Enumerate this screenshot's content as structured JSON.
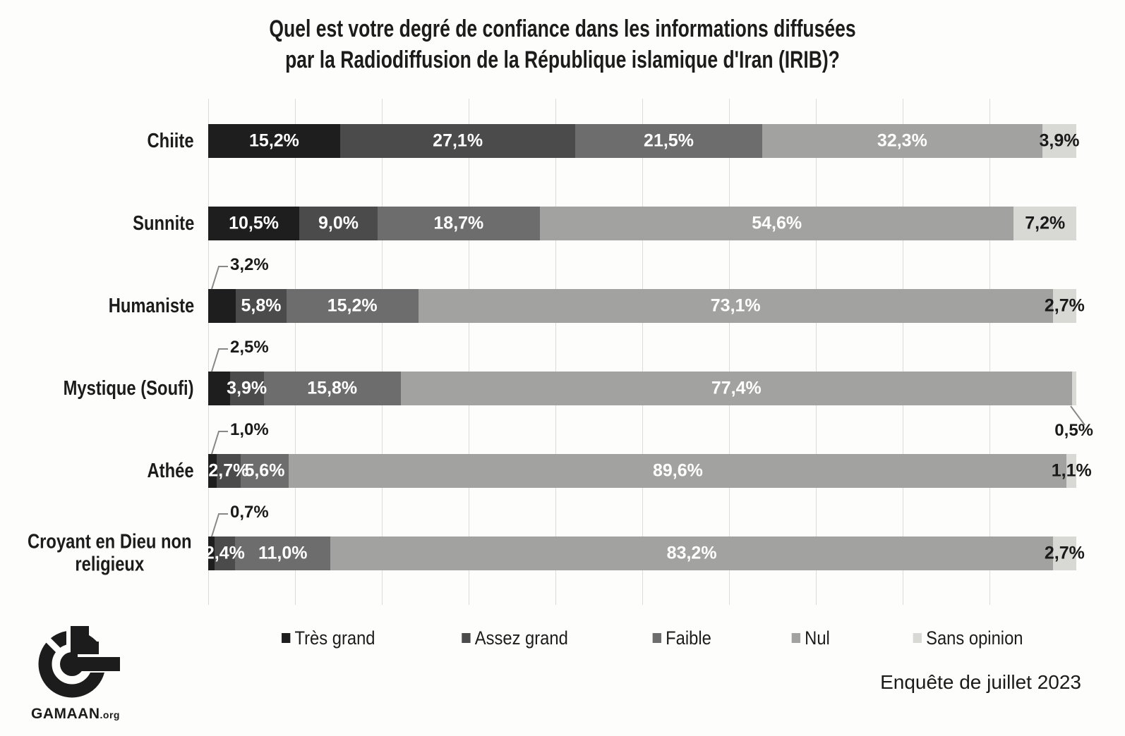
{
  "title": {
    "line1": "Quel est votre degré de confiance dans les informations diffusées",
    "line2": "par la Radiodiffusion de la République islamique d'Iran (IRIB)?"
  },
  "chart_data": {
    "type": "bar",
    "variant": "horizontal-stacked",
    "unit": "%",
    "xlim": [
      0,
      100
    ],
    "gridline_step_percent": 10,
    "grid": true,
    "legend_position": "bottom",
    "categories": [
      "Chiite",
      "Sunnite",
      "Humaniste",
      "Mystique (Soufi)",
      "Athée",
      "Croyant en Dieu non religieux"
    ],
    "series": [
      {
        "name": "Très grand",
        "color": "#1e1e1e",
        "values": [
          15.2,
          10.5,
          3.2,
          2.5,
          1.0,
          0.7
        ]
      },
      {
        "name": "Assez grand",
        "color": "#4b4b4b",
        "values": [
          27.1,
          9.0,
          5.8,
          3.9,
          2.7,
          2.4
        ]
      },
      {
        "name": "Faible",
        "color": "#6d6d6d",
        "values": [
          21.5,
          18.7,
          15.2,
          15.8,
          5.6,
          11.0
        ]
      },
      {
        "name": "Nul",
        "color": "#a2a2a0",
        "values": [
          32.3,
          54.6,
          73.1,
          77.4,
          89.6,
          83.2
        ]
      },
      {
        "name": "Sans opinion",
        "color": "#d8d8d4",
        "values": [
          3.9,
          7.2,
          2.7,
          0.5,
          1.1,
          2.7
        ]
      }
    ],
    "value_label_decimal_separator": ","
  },
  "footer": {
    "survey_note": "Enquête de juillet 2023",
    "logo_text": "GAMAAN",
    "logo_suffix": ".org"
  },
  "colors": {
    "background": "#fdfdfc",
    "gridline": "#dbdbdb",
    "label_on_dark": "#ffffff",
    "label_on_light": "#1a1a1a",
    "leader_line": "#888888"
  }
}
